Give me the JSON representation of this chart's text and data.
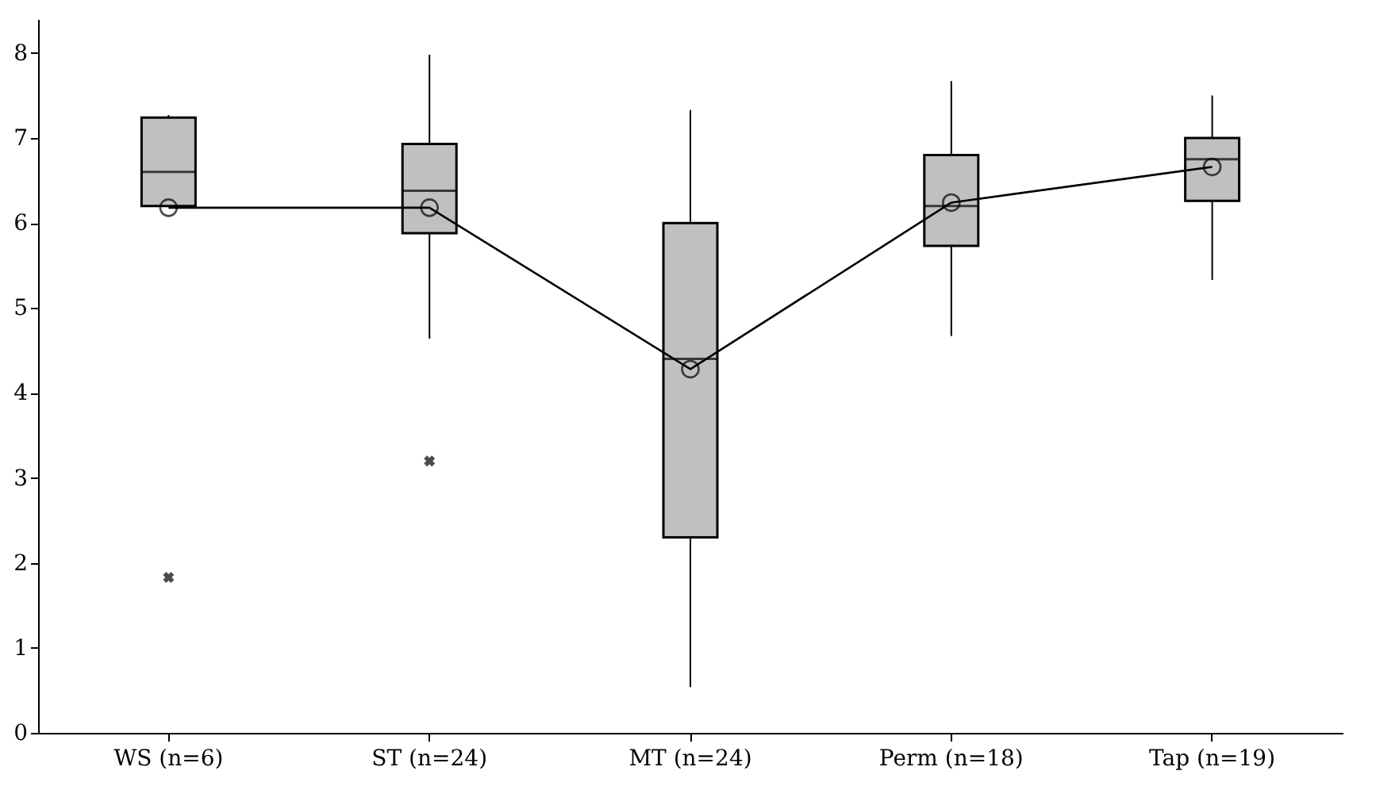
{
  "chart_data": {
    "type": "box",
    "categories": [
      "WS (n=6)",
      "ST (n=24)",
      "MT (n=24)",
      "Perm (n=18)",
      "Tap (n=19)"
    ],
    "boxes": [
      {
        "low": 6.2,
        "q1": 6.2,
        "median": 6.6,
        "q3": 7.24,
        "high": 7.27,
        "outliers": [
          1.83
        ]
      },
      {
        "low": 4.64,
        "q1": 5.88,
        "median": 6.38,
        "q3": 6.93,
        "high": 7.98,
        "outliers": [
          3.2
        ]
      },
      {
        "low": 0.54,
        "q1": 2.3,
        "median": 4.4,
        "q3": 6.0,
        "high": 7.33
      },
      {
        "low": 4.67,
        "q1": 5.73,
        "median": 6.2,
        "q3": 6.8,
        "high": 7.67
      },
      {
        "low": 5.33,
        "q1": 6.26,
        "median": 6.75,
        "q3": 7.0,
        "high": 7.5
      }
    ],
    "series": [
      {
        "type": "line",
        "color": "#000000",
        "values": [
          6.18,
          6.18,
          4.28,
          6.24,
          6.66
        ]
      }
    ],
    "color": "#c0c0c0",
    "marker": "circle",
    "ylim": [
      0,
      8.4
    ],
    "yticks": [
      0,
      1,
      2,
      3,
      4,
      5,
      6,
      7,
      8
    ]
  }
}
